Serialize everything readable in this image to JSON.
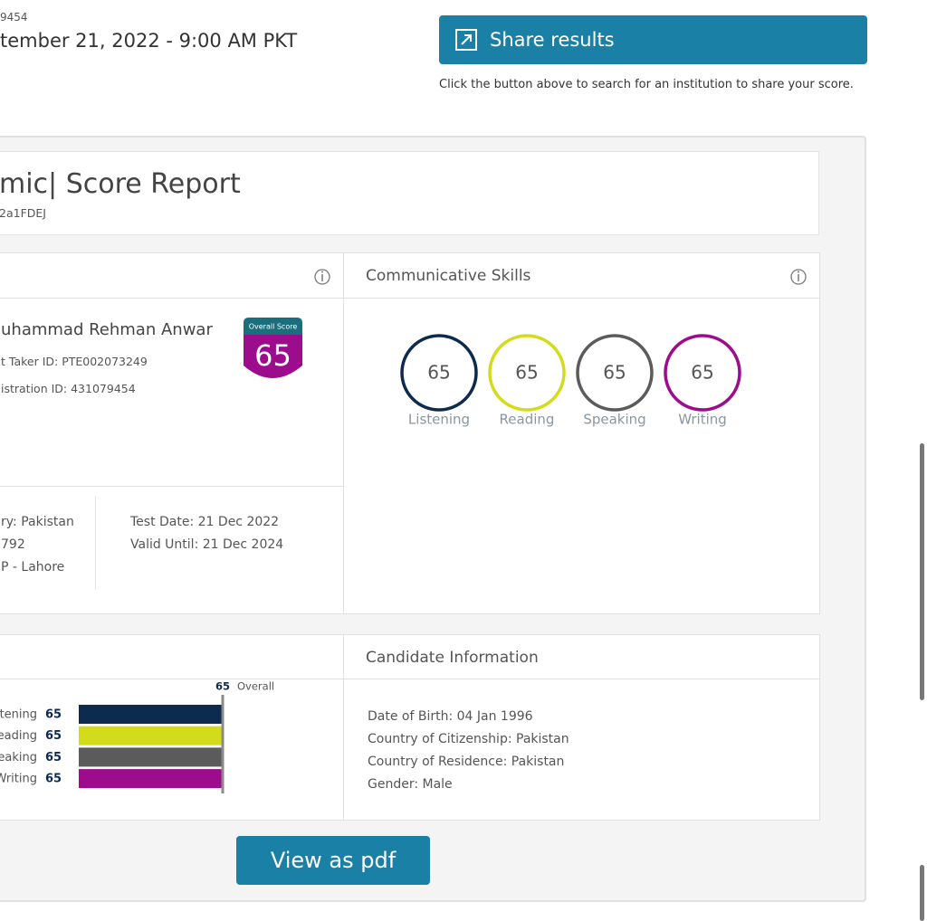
{
  "header": {
    "registration": "9454",
    "date": "tember 21, 2022 - 9:00 AM PKT",
    "share_button": "Share results",
    "share_hint": "Click the button above to search for an institution to share your score."
  },
  "report": {
    "title": "mic| Score Report",
    "code": "2a1FDEJ"
  },
  "test_taker": {
    "name": "uhammad Rehman Anwar",
    "taker_id": "t Taker ID: PTE002073249",
    "registration_id": "istration ID: 431079454",
    "overall_label": "Overall Score",
    "overall_score": 65,
    "details_left": [
      "ry: Pakistan",
      "792",
      "P - Lahore"
    ],
    "details_right": [
      "Test Date: 21 Dec 2022",
      "Valid Until: 21 Dec 2024"
    ]
  },
  "communicative_skills": {
    "title": "Communicative Skills",
    "skills": [
      {
        "name": "Listening",
        "score": 65,
        "color": "#0d2b4e"
      },
      {
        "name": "Reading",
        "score": 65,
        "color": "#d3dc1a"
      },
      {
        "name": "Speaking",
        "score": 65,
        "color": "#5b5b5b"
      },
      {
        "name": "Writing",
        "score": 65,
        "color": "#9c0c8d"
      }
    ]
  },
  "skills_breakdown": {
    "overall_value": 65,
    "overall_label": "Overall",
    "rows": [
      {
        "name": "tening",
        "score": 65,
        "color": "#0d2b4e"
      },
      {
        "name": "eading",
        "score": 65,
        "color": "#d3dc1a"
      },
      {
        "name": "eaking",
        "score": 65,
        "color": "#5b5b5b"
      },
      {
        "name": "Writing",
        "score": 65,
        "color": "#9c0c8d"
      }
    ]
  },
  "candidate_info": {
    "title": "Candidate Information",
    "lines": [
      "Date of Birth: 04 Jan 1996",
      "Country of Citizenship: Pakistan",
      "Country of Residence: Pakistan",
      "Gender: Male"
    ]
  },
  "pdf_button": "View as pdf"
}
